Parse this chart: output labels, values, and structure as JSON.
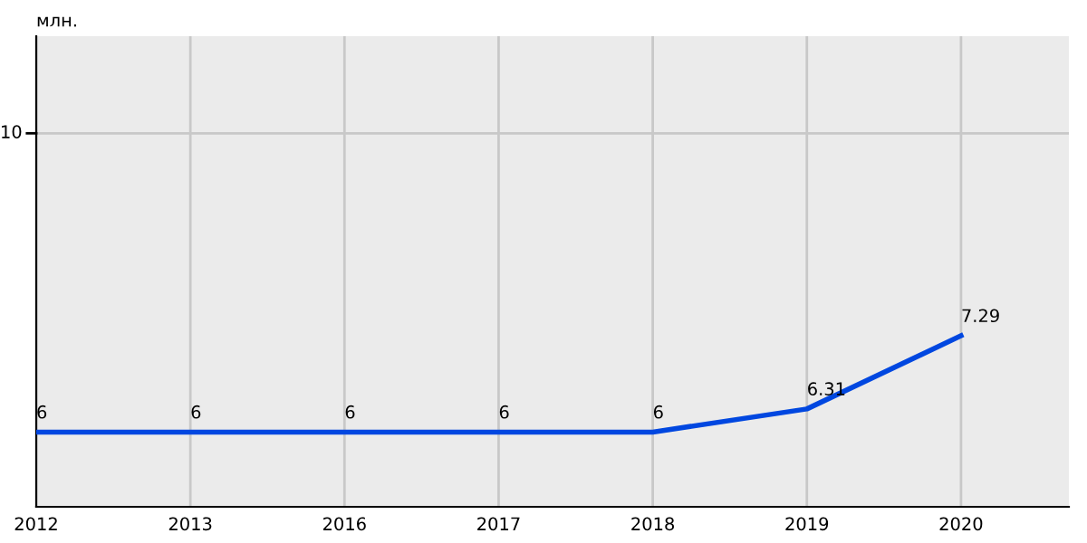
{
  "chart_data": {
    "type": "line",
    "ylabel": "млн.",
    "categories": [
      "2012",
      "2013",
      "2016",
      "2017",
      "2018",
      "2019",
      "2020"
    ],
    "series": [
      {
        "color": "#0047e0",
        "values": [
          6,
          6,
          6,
          6,
          6,
          6.31,
          7.29
        ]
      }
    ],
    "ylim": [
      5,
      11.3
    ],
    "ref_lines": [
      {
        "axis": "y",
        "value": 10,
        "label": "10",
        "color": "#c8c8c8"
      }
    ],
    "grid": "x",
    "data_labels": true,
    "marker": "none",
    "line_style": "solid",
    "legend": false
  }
}
